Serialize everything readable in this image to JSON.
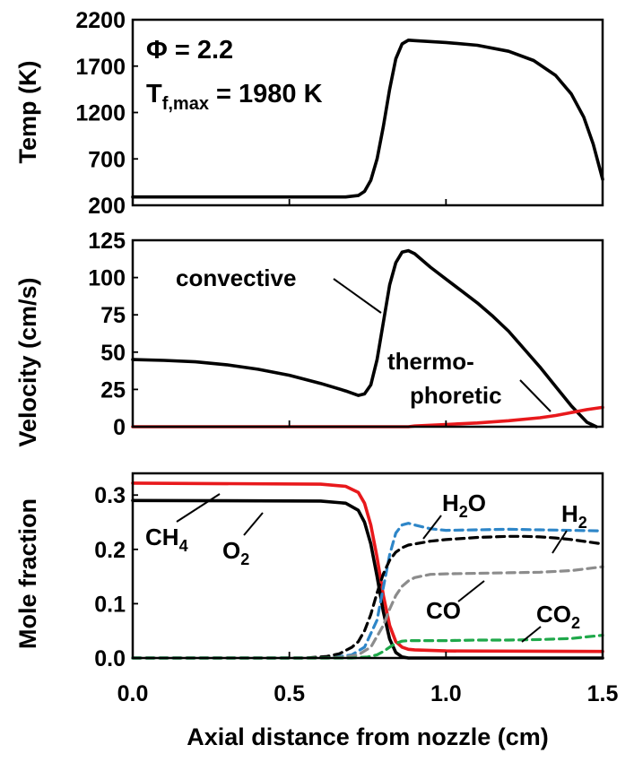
{
  "chart_data": [
    {
      "type": "line",
      "panel": "temperature",
      "ylabel": "Temp (K)",
      "ylim": [
        200,
        2200
      ],
      "yticks": [
        "200",
        "700",
        "1200",
        "1700",
        "2200"
      ],
      "xlim": [
        0,
        1.5
      ],
      "grid": false,
      "annotations": {
        "phi": "Φ = 2.2",
        "tmax_main": "T",
        "tmax_sub": "f,max",
        "tmax_value": " = 1980 K"
      },
      "series": [
        {
          "color": "#000000",
          "dash": "solid",
          "x": [
            0,
            0.68,
            0.72,
            0.74,
            0.76,
            0.78,
            0.8,
            0.82,
            0.84,
            0.86,
            0.88,
            0.9,
            1.0,
            1.1,
            1.2,
            1.28,
            1.35,
            1.4,
            1.44,
            1.47,
            1.5
          ],
          "y": [
            290,
            290,
            305,
            350,
            470,
            700,
            1050,
            1450,
            1780,
            1940,
            1980,
            1975,
            1955,
            1925,
            1860,
            1760,
            1600,
            1400,
            1150,
            860,
            480
          ]
        }
      ]
    },
    {
      "type": "line",
      "panel": "velocity",
      "ylabel": "Velocity (cm/s)",
      "ylim": [
        0,
        125
      ],
      "yticks": [
        "0",
        "25",
        "50",
        "75",
        "100",
        "125"
      ],
      "xlim": [
        0,
        1.5
      ],
      "grid": false,
      "series": [
        {
          "name": "convective",
          "color": "#000000",
          "dash": "solid",
          "x": [
            0,
            0.1,
            0.2,
            0.3,
            0.4,
            0.5,
            0.6,
            0.68,
            0.72,
            0.74,
            0.76,
            0.78,
            0.8,
            0.82,
            0.84,
            0.86,
            0.88,
            0.9,
            0.95,
            1.0,
            1.05,
            1.1,
            1.15,
            1.2,
            1.25,
            1.3,
            1.35,
            1.4,
            1.45,
            1.48
          ],
          "y": [
            45,
            44.5,
            43.5,
            41.5,
            38.5,
            34.5,
            29,
            24,
            21,
            22,
            28,
            45,
            70,
            95,
            110,
            117,
            118,
            116,
            107,
            99,
            91,
            83,
            74,
            64,
            52,
            40,
            27,
            14,
            3,
            0
          ]
        },
        {
          "name": "thermo-\nphoretic",
          "color": "#e8191c",
          "dash": "solid",
          "x": [
            0,
            0.6,
            0.7,
            0.74,
            0.78,
            0.82,
            0.86,
            0.88,
            0.9,
            1.0,
            1.1,
            1.2,
            1.3,
            1.35,
            1.4,
            1.45,
            1.5
          ],
          "y": [
            0,
            0,
            -0.5,
            -1.5,
            -2,
            -1.5,
            -0.5,
            0,
            0.5,
            1.5,
            2.5,
            4,
            6,
            7.5,
            9.5,
            11.5,
            13
          ]
        }
      ],
      "annotations": {
        "convective": "convective",
        "thermo_line1": "thermo-",
        "thermo_line2": "phoretic"
      }
    },
    {
      "type": "line",
      "panel": "mole_fraction",
      "ylabel": "Mole fraction",
      "ylim": [
        0,
        0.34
      ],
      "yticks": [
        "0.0",
        "0.1",
        "0.2",
        "0.3"
      ],
      "xlim": [
        0,
        1.5
      ],
      "xticks": [
        "0.0",
        "0.5",
        "1.0",
        "1.5"
      ],
      "xlabel": "Axial distance from nozzle (cm)",
      "grid": false,
      "series": [
        {
          "label_main": "CH",
          "label_sub": "4",
          "color": "#e8191c",
          "dash": "solid",
          "x": [
            0,
            0.6,
            0.68,
            0.72,
            0.74,
            0.76,
            0.78,
            0.8,
            0.82,
            0.84,
            0.86,
            0.88,
            0.9,
            1.0,
            1.5
          ],
          "y": [
            0.322,
            0.32,
            0.316,
            0.305,
            0.285,
            0.245,
            0.185,
            0.115,
            0.06,
            0.03,
            0.02,
            0.016,
            0.015,
            0.013,
            0.012
          ]
        },
        {
          "label_main": "O",
          "label_sub": "2",
          "color": "#000000",
          "dash": "solid",
          "x": [
            0,
            0.6,
            0.68,
            0.72,
            0.74,
            0.76,
            0.78,
            0.8,
            0.82,
            0.84,
            0.86,
            0.88,
            0.9,
            1.5
          ],
          "y": [
            0.29,
            0.289,
            0.285,
            0.272,
            0.25,
            0.21,
            0.15,
            0.085,
            0.035,
            0.01,
            0.002,
            0,
            0,
            0
          ]
        },
        {
          "label_main": "H",
          "label_sub": "2",
          "label_post": "O",
          "color": "#2e86c8",
          "dash": "dashed",
          "x": [
            0,
            0.55,
            0.65,
            0.7,
            0.74,
            0.78,
            0.8,
            0.82,
            0.84,
            0.86,
            0.88,
            0.9,
            0.95,
            1.0,
            1.1,
            1.2,
            1.3,
            1.4,
            1.5
          ],
          "y": [
            0,
            0,
            0.002,
            0.006,
            0.02,
            0.07,
            0.13,
            0.19,
            0.23,
            0.245,
            0.248,
            0.245,
            0.238,
            0.235,
            0.236,
            0.237,
            0.236,
            0.235,
            0.234
          ]
        },
        {
          "label_main": "H",
          "label_sub": "2",
          "color": "#000000",
          "dash": "dashed",
          "x": [
            0,
            0.55,
            0.62,
            0.66,
            0.7,
            0.72,
            0.74,
            0.76,
            0.78,
            0.8,
            0.82,
            0.84,
            0.86,
            0.88,
            0.9,
            0.95,
            1.0,
            1.1,
            1.2,
            1.25,
            1.3,
            1.35,
            1.4,
            1.45,
            1.5
          ],
          "y": [
            0,
            0,
            0.003,
            0.008,
            0.02,
            0.03,
            0.05,
            0.08,
            0.12,
            0.155,
            0.18,
            0.195,
            0.203,
            0.208,
            0.21,
            0.215,
            0.218,
            0.222,
            0.224,
            0.224,
            0.223,
            0.221,
            0.218,
            0.214,
            0.21
          ]
        },
        {
          "label_main": "CO",
          "color": "#8c8c8c",
          "dash": "dashed",
          "x": [
            0,
            0.62,
            0.68,
            0.72,
            0.76,
            0.8,
            0.82,
            0.84,
            0.86,
            0.88,
            0.9,
            0.95,
            1.0,
            1.1,
            1.2,
            1.3,
            1.4,
            1.5
          ],
          "y": [
            0,
            0,
            0.002,
            0.006,
            0.02,
            0.06,
            0.09,
            0.115,
            0.132,
            0.142,
            0.148,
            0.154,
            0.155,
            0.156,
            0.157,
            0.158,
            0.161,
            0.168
          ]
        },
        {
          "label_main": "CO",
          "label_sub": "2",
          "color": "#1fa84a",
          "dash": "dashed",
          "x": [
            0,
            0.7,
            0.75,
            0.78,
            0.8,
            0.82,
            0.84,
            0.86,
            0.88,
            0.9,
            1.0,
            1.1,
            1.2,
            1.3,
            1.4,
            1.45,
            1.5
          ],
          "y": [
            0,
            0,
            0.002,
            0.006,
            0.012,
            0.02,
            0.027,
            0.031,
            0.032,
            0.032,
            0.032,
            0.033,
            0.033,
            0.034,
            0.036,
            0.039,
            0.042
          ]
        }
      ]
    }
  ]
}
